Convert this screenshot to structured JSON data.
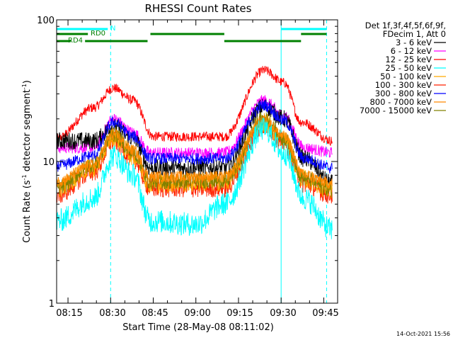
{
  "chart_data": {
    "type": "line",
    "title": "RHESSI Count Rates",
    "xlabel": "Start Time (28-May-08 08:11:02)",
    "ylabel_main": "Count Rate (s",
    "ylabel_exp1": "-1",
    "ylabel_mid": " detector segment",
    "ylabel_exp2": "-1",
    "ylabel_end": ")",
    "y_scale": "log",
    "ylim": [
      1,
      100
    ],
    "xlim": [
      "08:11",
      "09:48"
    ],
    "x_ticks": [
      "08:15",
      "08:30",
      "08:45",
      "09:00",
      "09:15",
      "09:30",
      "09:45"
    ],
    "y_ticks": [
      "1",
      "10",
      "100"
    ],
    "legend_header": [
      "Det 1f,3f,4f,5f,6f,9f,",
      "FDecim 1, Att 0"
    ],
    "legend_placement": "right",
    "series": [
      {
        "name": "3 - 6 keV",
        "color": "#000000",
        "z": 4,
        "points": [
          [
            "08:11",
            14
          ],
          [
            "08:24",
            14
          ],
          [
            "08:31",
            17.5
          ],
          [
            "08:38",
            14.5
          ],
          [
            "08:44",
            9
          ],
          [
            "09:10",
            9
          ],
          [
            "09:24",
            24.5
          ],
          [
            "09:31",
            20
          ],
          [
            "09:38",
            10.5
          ],
          [
            "09:48",
            7
          ]
        ],
        "noise": 0.09
      },
      {
        "name": "6 - 12 keV",
        "color": "#ff00ff",
        "z": 3,
        "points": [
          [
            "08:11",
            12.5
          ],
          [
            "08:24",
            12.5
          ],
          [
            "08:31",
            20
          ],
          [
            "08:38",
            16
          ],
          [
            "08:44",
            11.5
          ],
          [
            "09:10",
            11.5
          ],
          [
            "09:24",
            27
          ],
          [
            "09:31",
            21
          ],
          [
            "09:38",
            12.5
          ],
          [
            "09:48",
            11.5
          ]
        ],
        "noise": 0.06
      },
      {
        "name": "12 - 25 keV",
        "color": "#ff0000",
        "z": 2,
        "points": [
          [
            "08:11",
            14.5
          ],
          [
            "08:24",
            24
          ],
          [
            "08:31",
            33
          ],
          [
            "08:38",
            27
          ],
          [
            "08:45",
            15
          ],
          [
            "09:10",
            15
          ],
          [
            "09:24",
            44
          ],
          [
            "09:31",
            36
          ],
          [
            "09:37",
            19
          ],
          [
            "09:48",
            14
          ]
        ],
        "noise": 0.05
      },
      {
        "name": "25 - 50 keV",
        "color": "#00ffff",
        "z": 10,
        "points": [
          [
            "08:11",
            3.8
          ],
          [
            "08:24",
            5.5
          ],
          [
            "08:31",
            11
          ],
          [
            "08:38",
            8
          ],
          [
            "08:44",
            3.8
          ],
          [
            "09:00",
            3.6
          ],
          [
            "09:10",
            5
          ],
          [
            "09:24",
            17
          ],
          [
            "09:31",
            11.5
          ],
          [
            "09:38",
            5.5
          ],
          [
            "09:48",
            3.3
          ]
        ],
        "noise": 0.12
      },
      {
        "name": "50 - 100 keV",
        "color": "#ffaa00",
        "z": 7,
        "points": [
          [
            "08:11",
            6.5
          ],
          [
            "08:24",
            9
          ],
          [
            "08:31",
            15
          ],
          [
            "08:38",
            11
          ],
          [
            "08:44",
            7
          ],
          [
            "09:10",
            7.2
          ],
          [
            "09:24",
            19
          ],
          [
            "09:31",
            14
          ],
          [
            "09:38",
            7.5
          ],
          [
            "09:48",
            6.3
          ]
        ],
        "noise": 0.1
      },
      {
        "name": "100 - 300 keV",
        "color": "#ff2200",
        "z": 6,
        "points": [
          [
            "08:11",
            5.8
          ],
          [
            "08:24",
            8.5
          ],
          [
            "08:31",
            14
          ],
          [
            "08:38",
            10.5
          ],
          [
            "08:44",
            6.5
          ],
          [
            "09:10",
            6.5
          ],
          [
            "09:24",
            18
          ],
          [
            "09:31",
            13.5
          ],
          [
            "09:38",
            7
          ],
          [
            "09:48",
            5.8
          ]
        ],
        "noise": 0.1
      },
      {
        "name": "300 - 800 keV",
        "color": "#0000ff",
        "z": 5,
        "points": [
          [
            "08:11",
            9.3
          ],
          [
            "08:24",
            11
          ],
          [
            "08:31",
            19
          ],
          [
            "08:38",
            15
          ],
          [
            "08:44",
            10.5
          ],
          [
            "09:10",
            10.5
          ],
          [
            "09:24",
            25
          ],
          [
            "09:31",
            19.5
          ],
          [
            "09:38",
            10.5
          ],
          [
            "09:48",
            9
          ]
        ],
        "noise": 0.06
      },
      {
        "name": "800 - 7000 keV",
        "color": "#ff8800",
        "z": 9,
        "points": [
          [
            "08:11",
            7.2
          ],
          [
            "08:24",
            9.5
          ],
          [
            "08:31",
            15.5
          ],
          [
            "08:38",
            12
          ],
          [
            "08:44",
            7.8
          ],
          [
            "09:10",
            7.8
          ],
          [
            "09:24",
            19.5
          ],
          [
            "09:31",
            15
          ],
          [
            "09:38",
            8
          ],
          [
            "09:48",
            7
          ]
        ],
        "noise": 0.06
      },
      {
        "name": "7000 - 15000 keV",
        "color": "#808000",
        "z": 8,
        "points": [
          [
            "08:11",
            6.5
          ],
          [
            "08:24",
            9.5
          ],
          [
            "08:31",
            15.5
          ],
          [
            "08:38",
            11.5
          ],
          [
            "08:44",
            7.2
          ],
          [
            "09:10",
            7.3
          ],
          [
            "09:24",
            20
          ],
          [
            "09:31",
            14.5
          ],
          [
            "09:38",
            7.6
          ],
          [
            "09:48",
            6.3
          ]
        ],
        "noise": 0.08
      }
    ],
    "vertical_markers": [
      {
        "time": "08:11",
        "style": "solid",
        "color": "#00ffff"
      },
      {
        "time": "08:30",
        "style": "dashed",
        "color": "#00ffff"
      },
      {
        "time": "09:30",
        "style": "solid",
        "color": "#00ffff"
      },
      {
        "time": "09:46",
        "style": "dashed",
        "color": "#00ffff"
      }
    ],
    "annotations": {
      "night_label": "N",
      "rd0_label": "RD0",
      "rd4_label": "RD4",
      "night_color": "#00ffff",
      "rd_color": "#008000",
      "night_bars": [
        [
          "08:11",
          "08:29"
        ],
        [
          "09:30",
          "09:46"
        ]
      ],
      "rd0_bars": [
        [
          "08:11",
          "08:22"
        ],
        [
          "08:44",
          "09:10"
        ],
        [
          "09:37",
          "09:46"
        ]
      ],
      "rd4_bars": [
        [
          "08:11",
          "08:16"
        ],
        [
          "08:21",
          "08:43"
        ],
        [
          "09:10",
          "09:37"
        ]
      ]
    },
    "footer_date": "14-Oct-2021 15:56"
  }
}
